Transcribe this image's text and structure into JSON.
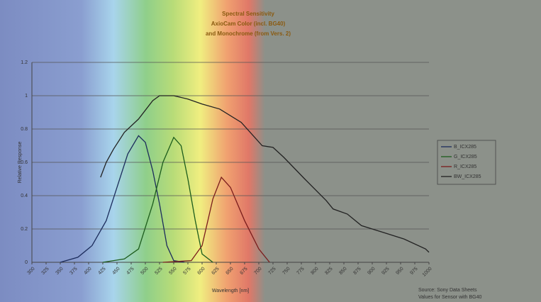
{
  "chart_data": {
    "type": "line",
    "title": "Spectral Sensitivity",
    "subtitle": [
      "AxioCam Color (incl. BG40)",
      "and Monochrome (from Vers. 2)"
    ],
    "x_label": "Wavelength [nm]",
    "y_label": "Relative Response",
    "annotations": [
      "Source: Sony Data Sheets",
      "Values for Sensor with BG40"
    ],
    "xlim": [
      300,
      1000
    ],
    "xticks": [
      300,
      325,
      350,
      375,
      400,
      425,
      450,
      475,
      500,
      525,
      550,
      575,
      600,
      625,
      650,
      675,
      700,
      725,
      750,
      775,
      800,
      825,
      850,
      875,
      900,
      925,
      950,
      975,
      1000
    ],
    "ylim": [
      0,
      1.2
    ],
    "yticks": [
      0,
      0.2,
      0.4,
      0.6,
      0.8,
      1,
      1.2
    ],
    "grid": true,
    "legend": "right",
    "series": [
      {
        "name": "B_ICX285",
        "color": "#1c2c5c",
        "x": [
          350,
          381,
          406,
          431,
          450,
          469,
          488,
          500,
          513,
          525,
          538,
          550,
          569
        ],
        "values": [
          0,
          0.03,
          0.1,
          0.25,
          0.45,
          0.65,
          0.76,
          0.72,
          0.55,
          0.35,
          0.1,
          0.01,
          0
        ]
      },
      {
        "name": "G_ICX285",
        "color": "#1c5c1c",
        "x": [
          425,
          463,
          488,
          513,
          531,
          550,
          563,
          575,
          588,
          600,
          619
        ],
        "values": [
          0,
          0.02,
          0.08,
          0.35,
          0.6,
          0.75,
          0.7,
          0.5,
          0.25,
          0.05,
          0
        ]
      },
      {
        "name": "R_ICX285",
        "color": "#7a1c1c",
        "x": [
          531,
          581,
          600,
          619,
          634,
          650,
          675,
          700,
          719
        ],
        "values": [
          0,
          0.01,
          0.1,
          0.38,
          0.51,
          0.45,
          0.25,
          0.08,
          0
        ]
      },
      {
        "name": "BW_ICX285",
        "color": "#222222",
        "x": [
          421,
          431,
          444,
          463,
          488,
          513,
          525,
          550,
          575,
          600,
          631,
          669,
          706,
          725,
          744,
          781,
          819,
          831,
          856,
          881,
          919,
          956,
          994,
          1000
        ],
        "values": [
          0.51,
          0.6,
          0.68,
          0.78,
          0.86,
          0.97,
          1,
          1,
          0.98,
          0.95,
          0.92,
          0.84,
          0.7,
          0.69,
          0.63,
          0.5,
          0.37,
          0.32,
          0.29,
          0.22,
          0.18,
          0.14,
          0.08,
          0.06
        ]
      }
    ]
  }
}
